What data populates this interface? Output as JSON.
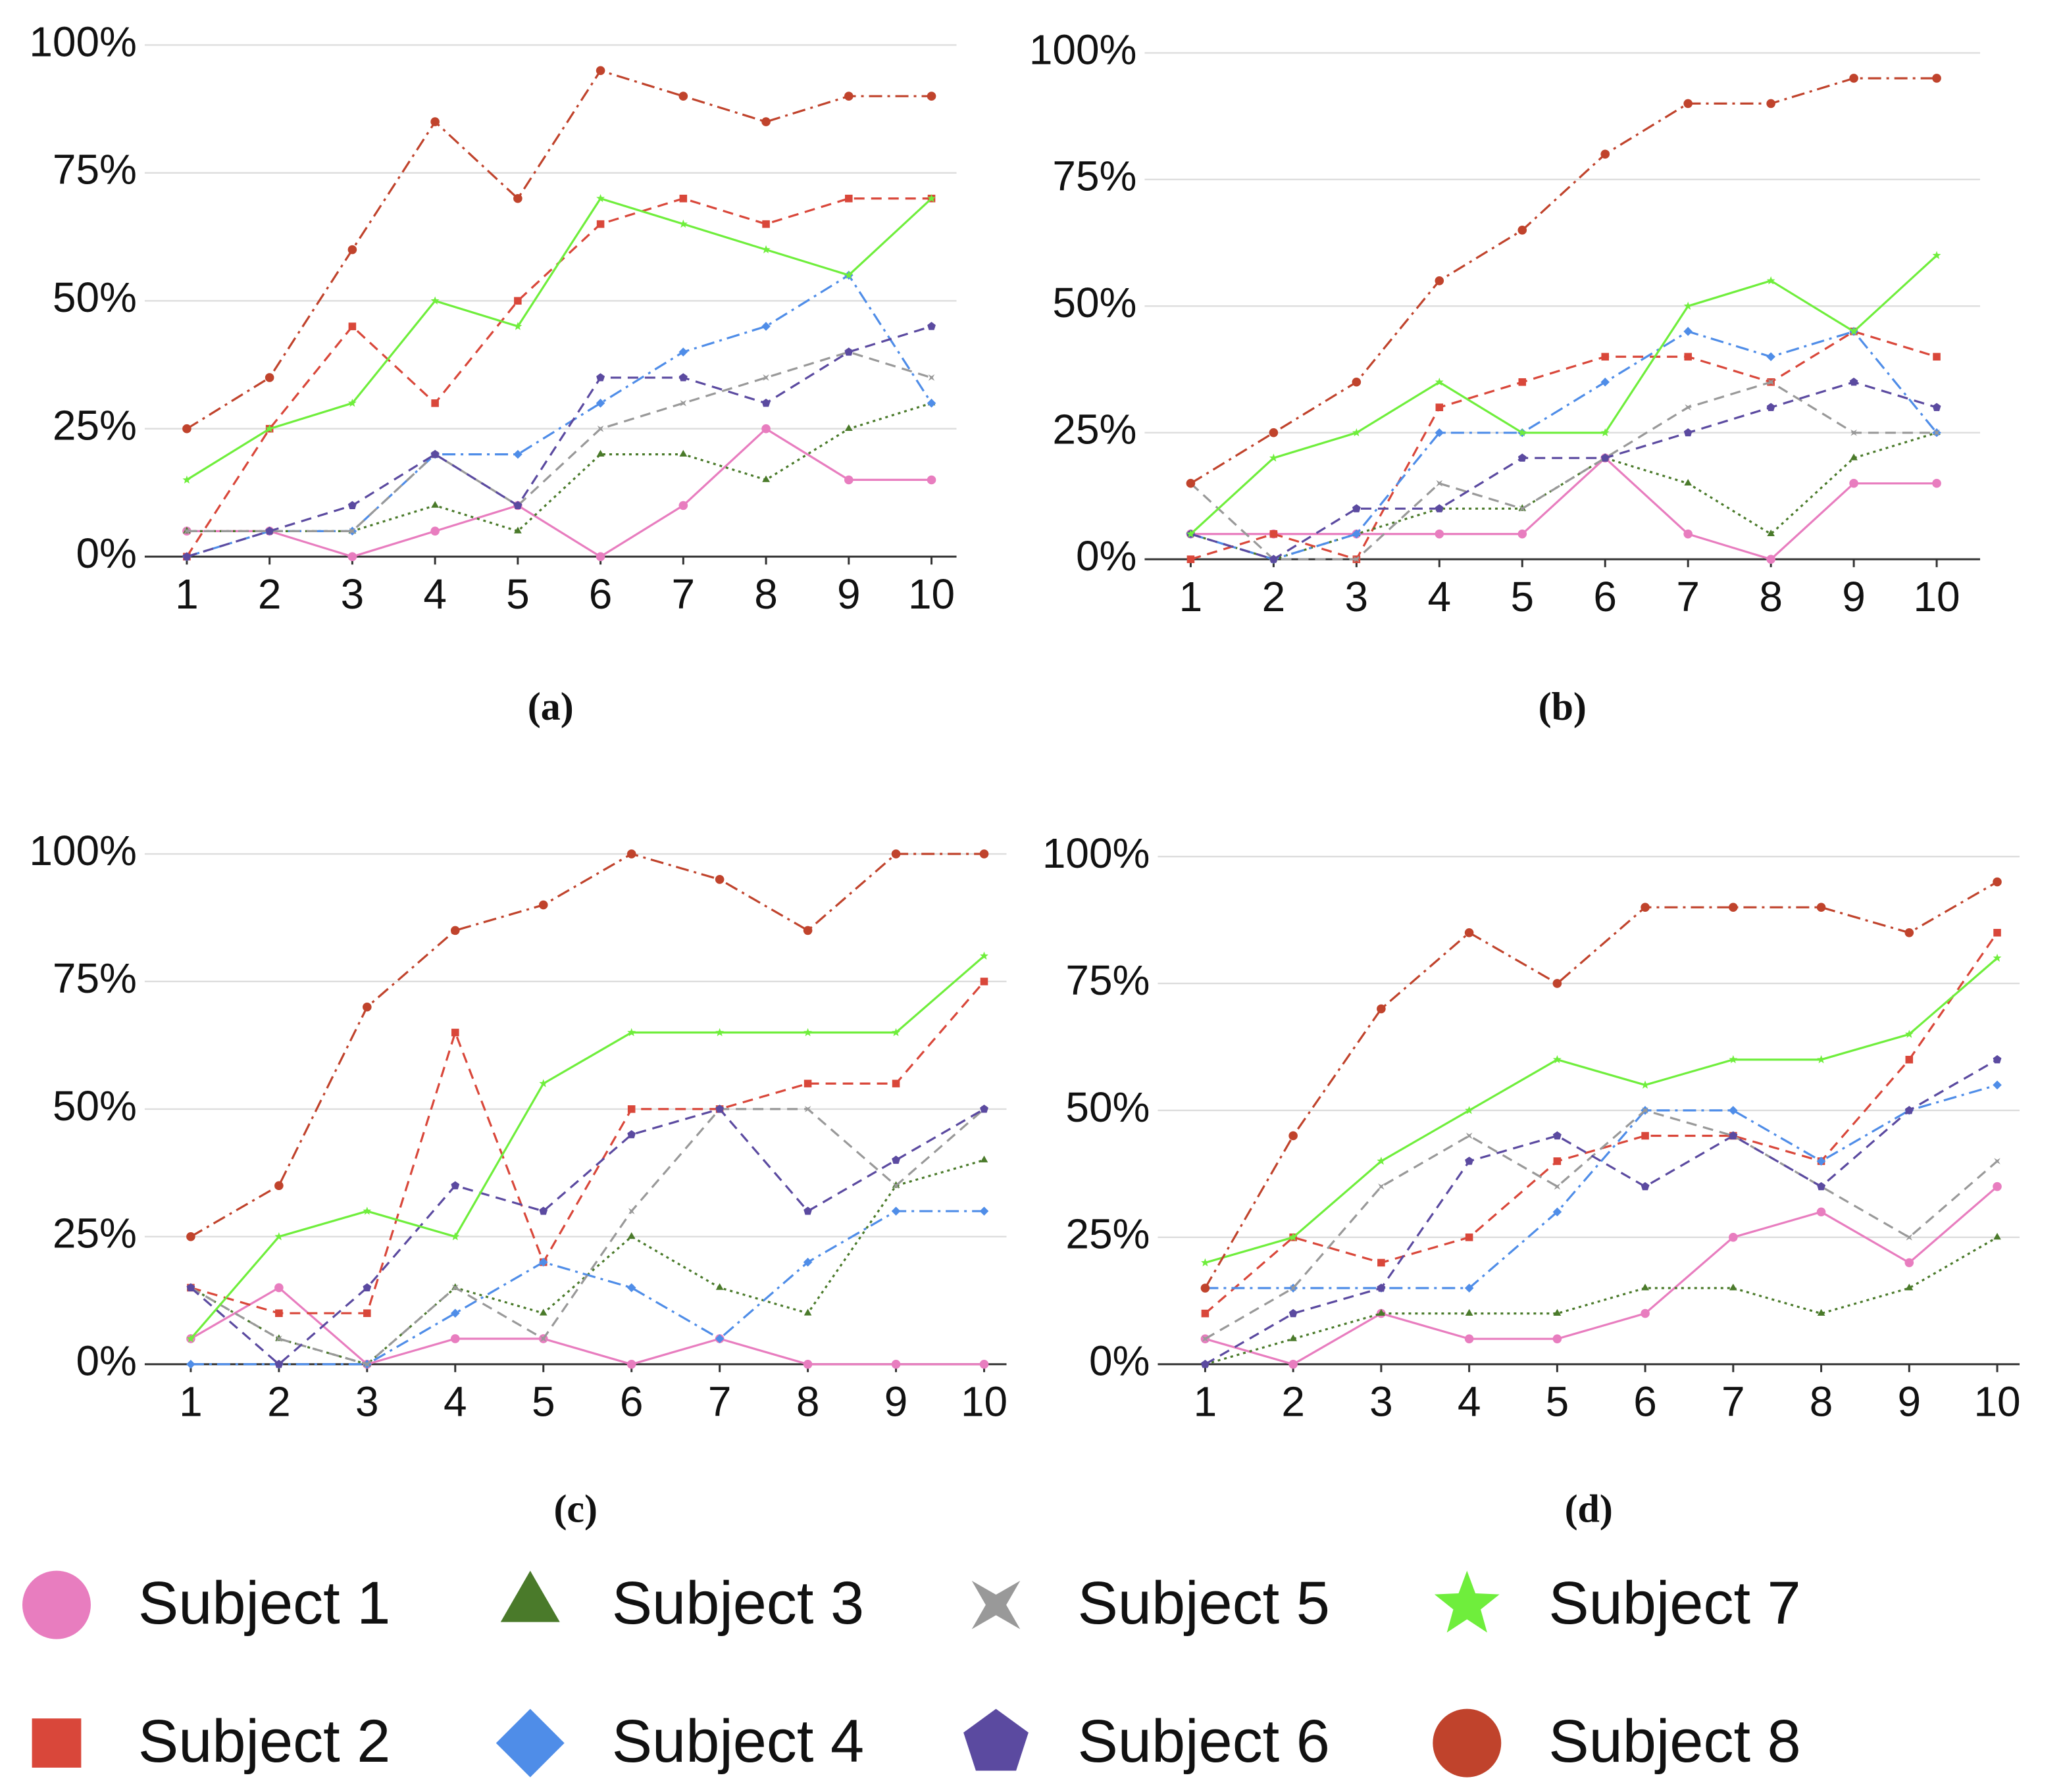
{
  "chart_data": [
    {
      "type": "line",
      "caption": "(a)",
      "x": [
        1,
        2,
        3,
        4,
        5,
        6,
        7,
        8,
        9,
        10
      ],
      "ylim": [
        0,
        100
      ],
      "yticks": [
        {
          "value": 0,
          "label": "0%"
        },
        {
          "value": 25,
          "label": "25%"
        },
        {
          "value": 50,
          "label": "50%"
        },
        {
          "value": 75,
          "label": "75%"
        },
        {
          "value": 100,
          "label": "100%"
        }
      ],
      "grid": true,
      "series": [
        {
          "values": [
            5,
            5,
            0,
            5,
            10,
            0,
            10,
            25,
            15,
            15
          ]
        },
        {
          "values": [
            0,
            25,
            45,
            30,
            50,
            65,
            70,
            65,
            70,
            70
          ]
        },
        {
          "values": [
            5,
            5,
            5,
            10,
            5,
            20,
            20,
            15,
            25,
            30
          ]
        },
        {
          "values": [
            0,
            5,
            5,
            20,
            20,
            30,
            40,
            45,
            55,
            30
          ]
        },
        {
          "values": [
            5,
            5,
            5,
            20,
            10,
            25,
            30,
            35,
            40,
            35
          ]
        },
        {
          "values": [
            0,
            5,
            10,
            20,
            10,
            35,
            35,
            30,
            40,
            45
          ]
        },
        {
          "values": [
            15,
            25,
            30,
            50,
            45,
            70,
            65,
            60,
            55,
            70
          ]
        },
        {
          "values": [
            25,
            35,
            60,
            85,
            70,
            95,
            90,
            85,
            90,
            90
          ]
        }
      ]
    },
    {
      "type": "line",
      "caption": "(b)",
      "x": [
        1,
        2,
        3,
        4,
        5,
        6,
        7,
        8,
        9,
        10
      ],
      "ylim": [
        0,
        100
      ],
      "yticks": [
        {
          "value": 0,
          "label": "0%"
        },
        {
          "value": 25,
          "label": "25%"
        },
        {
          "value": 50,
          "label": "50%"
        },
        {
          "value": 75,
          "label": "75%"
        },
        {
          "value": 100,
          "label": "100%"
        }
      ],
      "grid": true,
      "series": [
        {
          "values": [
            5,
            5,
            5,
            5,
            5,
            20,
            5,
            0,
            15,
            15
          ]
        },
        {
          "values": [
            0,
            5,
            0,
            30,
            35,
            40,
            40,
            35,
            45,
            40
          ]
        },
        {
          "values": [
            5,
            0,
            5,
            10,
            10,
            20,
            15,
            5,
            20,
            25
          ]
        },
        {
          "values": [
            5,
            0,
            5,
            25,
            25,
            35,
            45,
            40,
            45,
            25
          ]
        },
        {
          "values": [
            15,
            0,
            0,
            15,
            10,
            20,
            30,
            35,
            25,
            25
          ]
        },
        {
          "values": [
            5,
            0,
            10,
            10,
            20,
            20,
            25,
            30,
            35,
            30
          ]
        },
        {
          "values": [
            5,
            20,
            25,
            35,
            25,
            25,
            50,
            55,
            45,
            60
          ]
        },
        {
          "values": [
            15,
            25,
            35,
            55,
            65,
            80,
            90,
            90,
            95,
            95
          ]
        }
      ]
    },
    {
      "type": "line",
      "caption": "(c)",
      "x": [
        1,
        2,
        3,
        4,
        5,
        6,
        7,
        8,
        9,
        10
      ],
      "ylim": [
        0,
        100
      ],
      "yticks": [
        {
          "value": 0,
          "label": "0%"
        },
        {
          "value": 25,
          "label": "25%"
        },
        {
          "value": 50,
          "label": "50%"
        },
        {
          "value": 75,
          "label": "75%"
        },
        {
          "value": 100,
          "label": "100%"
        }
      ],
      "grid": true,
      "series": [
        {
          "values": [
            5,
            15,
            0,
            5,
            5,
            0,
            5,
            0,
            0,
            0
          ]
        },
        {
          "values": [
            15,
            10,
            10,
            65,
            20,
            50,
            50,
            55,
            55,
            75
          ]
        },
        {
          "values": [
            15,
            5,
            0,
            15,
            10,
            25,
            15,
            10,
            35,
            40
          ]
        },
        {
          "values": [
            0,
            0,
            0,
            10,
            20,
            15,
            5,
            20,
            30,
            30
          ]
        },
        {
          "values": [
            15,
            5,
            0,
            15,
            5,
            30,
            50,
            50,
            35,
            50
          ]
        },
        {
          "values": [
            15,
            0,
            15,
            35,
            30,
            45,
            50,
            30,
            40,
            50
          ]
        },
        {
          "values": [
            5,
            25,
            30,
            25,
            55,
            65,
            65,
            65,
            65,
            80
          ]
        },
        {
          "values": [
            25,
            35,
            70,
            85,
            90,
            100,
            95,
            85,
            100,
            100
          ]
        }
      ]
    },
    {
      "type": "line",
      "caption": "(d)",
      "x": [
        1,
        2,
        3,
        4,
        5,
        6,
        7,
        8,
        9,
        10
      ],
      "ylim": [
        0,
        100
      ],
      "yticks": [
        {
          "value": 0,
          "label": "0%"
        },
        {
          "value": 25,
          "label": "25%"
        },
        {
          "value": 50,
          "label": "50%"
        },
        {
          "value": 75,
          "label": "75%"
        },
        {
          "value": 100,
          "label": "100%"
        }
      ],
      "grid": true,
      "series": [
        {
          "values": [
            5,
            0,
            10,
            5,
            5,
            10,
            25,
            30,
            20,
            35
          ]
        },
        {
          "values": [
            10,
            25,
            20,
            25,
            40,
            45,
            45,
            40,
            60,
            85
          ]
        },
        {
          "values": [
            0,
            5,
            10,
            10,
            10,
            15,
            15,
            10,
            15,
            25
          ]
        },
        {
          "values": [
            15,
            15,
            15,
            15,
            30,
            50,
            50,
            40,
            50,
            55
          ]
        },
        {
          "values": [
            5,
            15,
            35,
            45,
            35,
            50,
            45,
            35,
            25,
            40
          ]
        },
        {
          "values": [
            0,
            10,
            15,
            40,
            45,
            35,
            45,
            35,
            50,
            60
          ]
        },
        {
          "values": [
            20,
            25,
            40,
            50,
            60,
            55,
            60,
            60,
            65,
            80
          ]
        },
        {
          "values": [
            15,
            45,
            70,
            85,
            75,
            90,
            90,
            90,
            85,
            95
          ]
        }
      ]
    }
  ],
  "legend": {
    "entries": [
      {
        "name": "Subject 1",
        "color": "#e87dbf",
        "marker": "circle",
        "dash": "solid"
      },
      {
        "name": "Subject 2",
        "color": "#d9473a",
        "marker": "square",
        "dash": "dashed"
      },
      {
        "name": "Subject 3",
        "color": "#4a7a2a",
        "marker": "triangle",
        "dash": "dotted"
      },
      {
        "name": "Subject 4",
        "color": "#4f8de8",
        "marker": "diamond",
        "dash": "dashdot"
      },
      {
        "name": "Subject 5",
        "color": "#999999",
        "marker": "cross",
        "dash": "dashed"
      },
      {
        "name": "Subject 6",
        "color": "#5b4aa0",
        "marker": "pentagon",
        "dash": "dashed"
      },
      {
        "name": "Subject 7",
        "color": "#6fee3c",
        "marker": "star",
        "dash": "solid"
      },
      {
        "name": "Subject 8",
        "color": "#c0432c",
        "marker": "circle",
        "dash": "dashdot"
      }
    ]
  }
}
